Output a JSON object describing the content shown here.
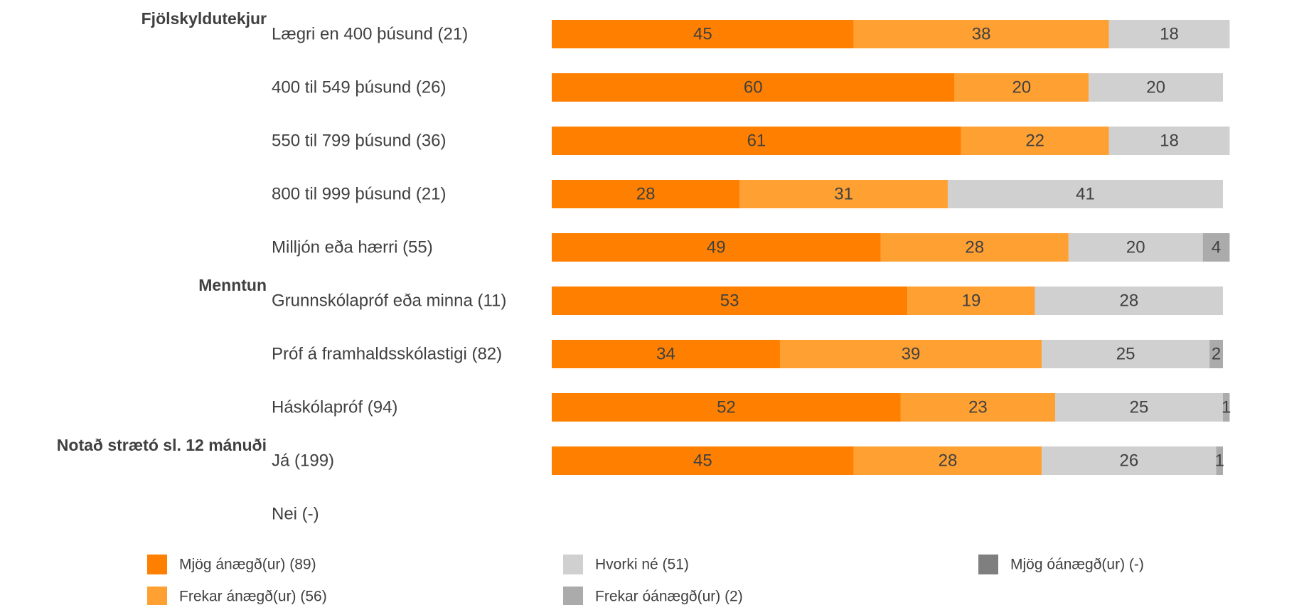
{
  "chart_data": {
    "type": "bar",
    "orientation": "horizontal",
    "stacked": true,
    "title": "",
    "xlabel": "",
    "ylabel": "",
    "xlim": [
      0,
      100
    ],
    "groups": [
      {
        "label": "Fjölskyldutekjur",
        "first_row": 0
      },
      {
        "label": "Menntun",
        "first_row": 5
      },
      {
        "label": "Notað strætó sl. 12 mánuði",
        "first_row": 8
      }
    ],
    "categories": [
      "Lægri en 400 þúsund (21)",
      "400 til 549 þúsund (26)",
      "550 til 799 þúsund (36)",
      "800 til 999 þúsund (21)",
      "Milljón eða hærri (55)",
      "Grunnskólapróf eða minna  (11)",
      "Próf á framhaldsskólastigi (82)",
      "Háskólapróf (94)",
      "Já (199)",
      "Nei (-)"
    ],
    "series": [
      {
        "name": "Mjög ánægð(ur) (89)",
        "color": "#ff8000",
        "values": [
          45,
          60,
          61,
          28,
          49,
          53,
          34,
          52,
          45,
          null
        ]
      },
      {
        "name": "Frekar ánægð(ur) (56)",
        "color": "#ffa033",
        "values": [
          38,
          20,
          22,
          31,
          28,
          19,
          39,
          23,
          28,
          null
        ]
      },
      {
        "name": "Hvorki né (51)",
        "color": "#d0d0d0",
        "values": [
          18,
          20,
          18,
          41,
          20,
          28,
          25,
          25,
          26,
          null
        ]
      },
      {
        "name": "Frekar óánægð(ur) (2)",
        "color": "#ababab",
        "values": [
          0,
          0,
          0,
          0,
          4,
          0,
          2,
          1,
          1,
          null
        ]
      },
      {
        "name": "Mjög óánægð(ur) (-)",
        "color": "#7f7f7f",
        "values": [
          0,
          0,
          0,
          0,
          0,
          0,
          0,
          0,
          0,
          null
        ]
      }
    ],
    "legend": {
      "position": "bottom",
      "order": [
        0,
        2,
        4,
        1,
        3
      ]
    }
  }
}
